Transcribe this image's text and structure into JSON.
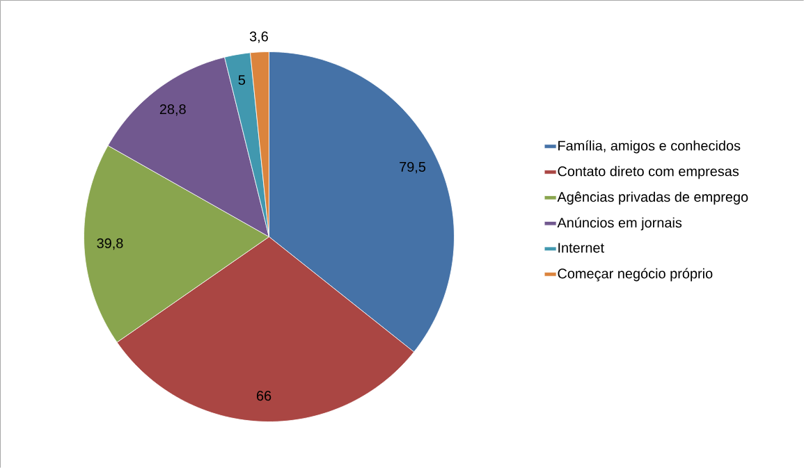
{
  "chart_data": {
    "type": "pie",
    "categories": [
      "Família, amigos e conhecidos",
      "Contato direto com empresas",
      "Agências privadas de emprego",
      "Anúncios em jornais",
      "Internet",
      "Começar negócio próprio"
    ],
    "values": [
      79.5,
      66,
      39.8,
      28.8,
      5,
      3.6
    ],
    "colors": [
      "#4572a7",
      "#aa4643",
      "#89a54e",
      "#71588f",
      "#4198af",
      "#db843d"
    ],
    "value_labels": [
      "79,5",
      "66",
      "39,8",
      "28,8",
      "5",
      "3,6"
    ],
    "legend": "right"
  }
}
